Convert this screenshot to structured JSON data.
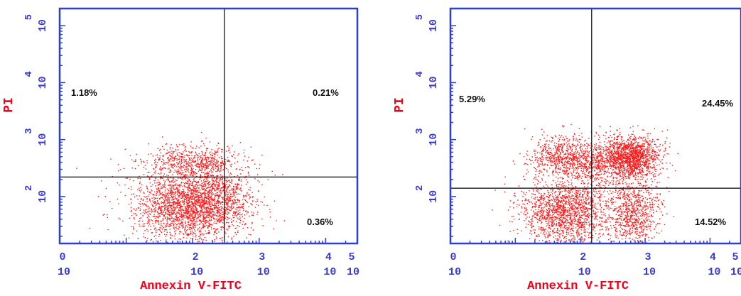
{
  "colors": {
    "axis": "#2d3ed3",
    "ticks": "#3b3bd1",
    "gate": "#000000",
    "dots": "#ff1a1a",
    "axis_title": "#f2001c",
    "background": "#ffffff"
  },
  "chart_data": [
    {
      "type": "scatter",
      "panel": "left",
      "title": "",
      "xlabel": "Annexin V-FITC",
      "ylabel": "PI",
      "x_scale": "log",
      "y_scale": "log",
      "xlim": [
        1,
        30000
      ],
      "ylim": [
        15,
        200000
      ],
      "x_ticks": [
        {
          "value": 1,
          "base": "10",
          "exp": "0"
        },
        {
          "value": 100,
          "base": "10",
          "exp": "2"
        },
        {
          "value": 1000,
          "base": "10",
          "exp": "3"
        },
        {
          "value": 10000,
          "base": "10",
          "exp": "4"
        },
        {
          "value": 100000,
          "base": "10",
          "exp": "5"
        }
      ],
      "y_ticks": [
        {
          "value": 100,
          "base": "10",
          "exp": "2"
        },
        {
          "value": 1000,
          "base": "10",
          "exp": "3"
        },
        {
          "value": 10000,
          "base": "10",
          "exp": "4"
        },
        {
          "value": 100000,
          "base": "10",
          "exp": "5"
        }
      ],
      "gate": {
        "x": 300,
        "y": 220
      },
      "quadrants": [
        {
          "name": "upper-left",
          "label": "1.18%"
        },
        {
          "name": "upper-right",
          "label": "0.21%"
        },
        {
          "name": "lower-right",
          "label": "0.36%"
        }
      ],
      "populations": [
        {
          "name": "live",
          "cx": 90,
          "cy": 75,
          "sx": 0.42,
          "sy": 0.32,
          "n": 2400
        },
        {
          "name": "live-shoulder",
          "cx": 220,
          "cy": 110,
          "sx": 0.3,
          "sy": 0.28,
          "n": 500
        },
        {
          "name": "upper-smear",
          "cx": 100,
          "cy": 420,
          "sx": 0.38,
          "sy": 0.14,
          "n": 550
        }
      ]
    },
    {
      "type": "scatter",
      "panel": "right",
      "title": "",
      "xlabel": "Annexin V-FITC",
      "ylabel": "PI",
      "x_scale": "log",
      "y_scale": "log",
      "xlim": [
        1,
        30000
      ],
      "ylim": [
        15,
        200000
      ],
      "x_ticks": [
        {
          "value": 1,
          "base": "10",
          "exp": "0"
        },
        {
          "value": 100,
          "base": "10",
          "exp": "2"
        },
        {
          "value": 1000,
          "base": "10",
          "exp": "3"
        },
        {
          "value": 10000,
          "base": "10",
          "exp": "4"
        },
        {
          "value": 100000,
          "base": "10",
          "exp": "5"
        }
      ],
      "y_ticks": [
        {
          "value": 100,
          "base": "10",
          "exp": "2"
        },
        {
          "value": 1000,
          "base": "10",
          "exp": "3"
        },
        {
          "value": 10000,
          "base": "10",
          "exp": "4"
        },
        {
          "value": 100000,
          "base": "10",
          "exp": "5"
        }
      ],
      "gate": {
        "x": 150,
        "y": 140
      },
      "quadrants": [
        {
          "name": "upper-left",
          "label": "5.29%"
        },
        {
          "name": "upper-right",
          "label": "24.45%"
        },
        {
          "name": "lower-right",
          "label": "14.52%"
        }
      ],
      "populations": [
        {
          "name": "live",
          "cx": 60,
          "cy": 55,
          "sx": 0.35,
          "sy": 0.3,
          "n": 1700
        },
        {
          "name": "early-apoptotic",
          "cx": 650,
          "cy": 55,
          "sx": 0.2,
          "sy": 0.3,
          "n": 800
        },
        {
          "name": "late-apoptotic",
          "cx": 600,
          "cy": 500,
          "sx": 0.22,
          "sy": 0.18,
          "n": 1500
        },
        {
          "name": "upper-left",
          "cx": 50,
          "cy": 500,
          "sx": 0.25,
          "sy": 0.18,
          "n": 650
        },
        {
          "name": "bridge",
          "cx": 180,
          "cy": 400,
          "sx": 0.25,
          "sy": 0.2,
          "n": 500
        }
      ]
    }
  ]
}
